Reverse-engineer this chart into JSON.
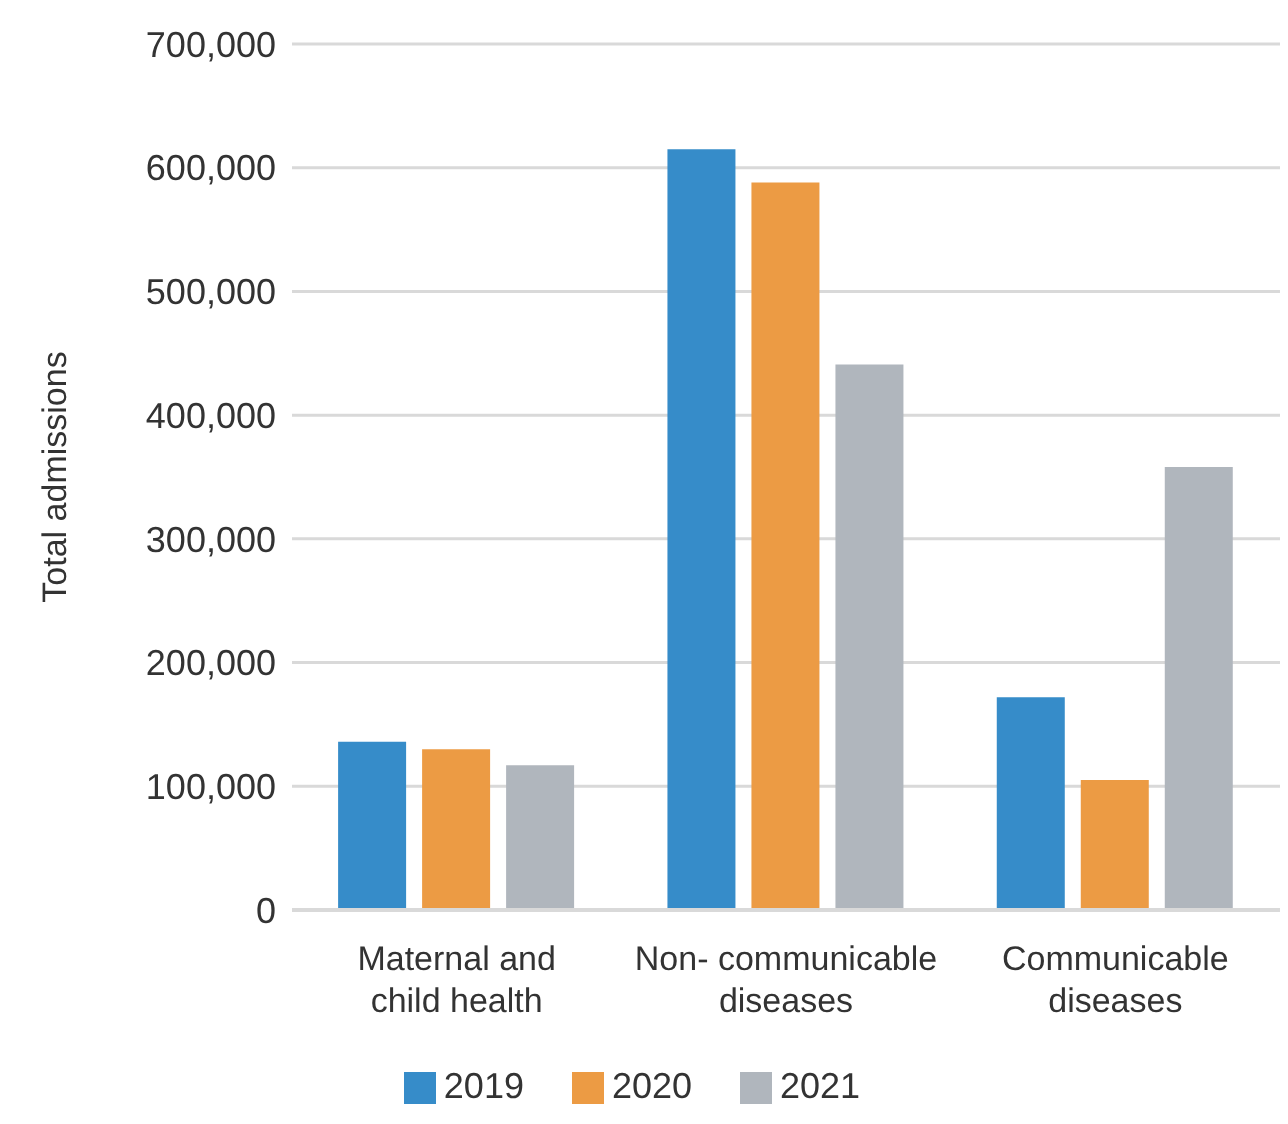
{
  "chart_data": {
    "type": "bar",
    "ylabel": "Total admissions",
    "categories": [
      "Maternal and child health",
      "Non- communicable diseases",
      "Communicable diseases"
    ],
    "series": [
      {
        "name": "2019",
        "color": "#368cc9",
        "values": [
          136000,
          615000,
          172000
        ]
      },
      {
        "name": "2020",
        "color": "#ec9b44",
        "values": [
          130000,
          588000,
          105000
        ]
      },
      {
        "name": "2021",
        "color": "#b0b6bd",
        "values": [
          117000,
          441000,
          358000
        ]
      }
    ],
    "ylim": [
      0,
      700000
    ],
    "yticks": [
      0,
      {
        "value": 100000,
        "label": "100,000"
      },
      {
        "value": 200000,
        "label": "200,000"
      },
      {
        "value": 300000,
        "label": "300,000"
      },
      {
        "value": 400000,
        "label": "400,000"
      },
      {
        "value": 500000,
        "label": "500,000"
      },
      {
        "value": 600000,
        "label": "600,000"
      },
      {
        "value": 700000,
        "label": "700,000"
      }
    ],
    "grid": "y",
    "legend": "bottom"
  }
}
